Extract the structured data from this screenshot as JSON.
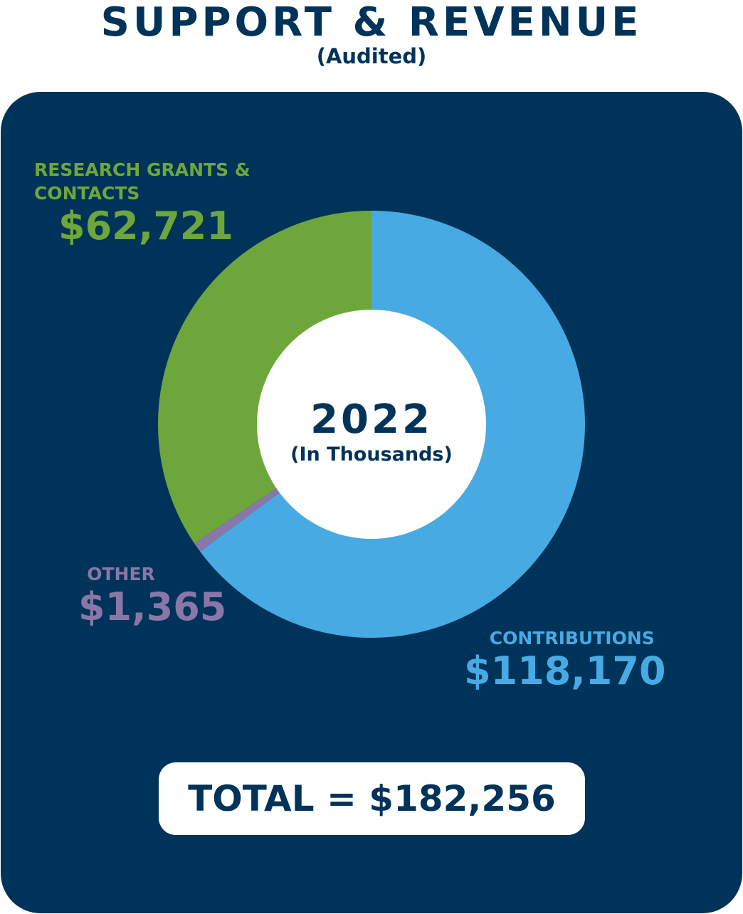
{
  "title": "SUPPORT & REVENUE",
  "subtitle": "(Audited)",
  "colors": {
    "navy": "#003359",
    "contributions": "#48aae3",
    "research": "#6da73b",
    "other": "#8a77a9",
    "white": "#ffffff"
  },
  "chart_data": {
    "type": "pie",
    "donut": true,
    "center_label": "2022",
    "center_sublabel": "(In Thousands)",
    "categories": [
      "CONTRIBUTIONS",
      "OTHER",
      "RESEARCH GRANTS & CONTACTS"
    ],
    "values": [
      118170,
      1365,
      62721
    ],
    "value_labels": [
      "$118,170",
      "$1,365",
      "$62,721"
    ],
    "colors": [
      "#48aae3",
      "#8a77a9",
      "#6da73b"
    ],
    "start_angle_deg": 0,
    "direction": "clockwise",
    "total_label": "TOTAL = $182,256"
  }
}
